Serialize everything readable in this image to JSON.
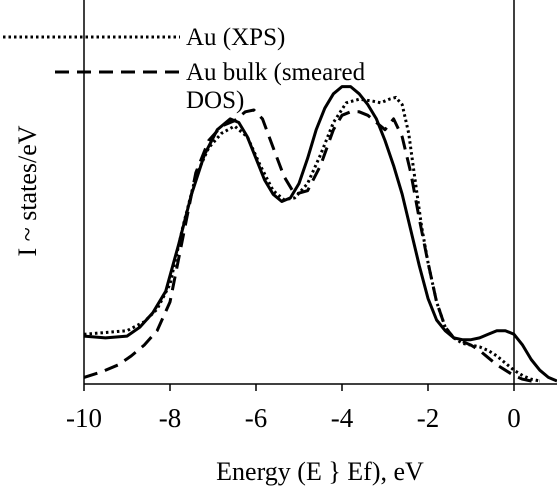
{
  "chart_data": {
    "type": "line",
    "xlabel": "Energy (E } Ef), eV",
    "ylabel": "I ~ states/eV",
    "xlim": [
      -10,
      1
    ],
    "ylim": [
      0,
      1
    ],
    "xticks": [
      -10,
      -8,
      -6,
      -4,
      -2,
      0
    ],
    "xtick_labels": [
      "-10",
      "-8",
      "-6",
      "-4",
      "-2",
      "0"
    ],
    "ytick_labels": [],
    "grid": false,
    "vline_x": 0,
    "legend_position": "top-left",
    "legend": [
      {
        "text": "Au (XPS)",
        "style": "dotted"
      },
      {
        "text_lines": [
          "Au bulk (smeared",
          "DOS)"
        ],
        "style": "dashed"
      }
    ],
    "series": [
      {
        "name": "Au (XPS)",
        "style": "dotted",
        "color": "#000000",
        "x": [
          -10,
          -9.5,
          -9.0,
          -8.6,
          -8.3,
          -8.0,
          -7.7,
          -7.4,
          -7.1,
          -6.8,
          -6.5,
          -6.2,
          -5.9,
          -5.6,
          -5.35,
          -5.1,
          -4.8,
          -4.5,
          -4.2,
          -3.9,
          -3.6,
          -3.3,
          -3.1,
          -2.9,
          -2.75,
          -2.6,
          -2.45,
          -2.3,
          -2.15,
          -2.0,
          -1.8,
          -1.6,
          -1.4,
          -1.2,
          -1.0,
          -0.8,
          -0.6,
          -0.4,
          -0.2,
          0.0,
          0.2,
          0.4,
          0.6
        ],
        "values": [
          0.13,
          0.135,
          0.14,
          0.165,
          0.2,
          0.27,
          0.43,
          0.57,
          0.65,
          0.69,
          0.71,
          0.68,
          0.6,
          0.53,
          0.505,
          0.51,
          0.55,
          0.63,
          0.72,
          0.775,
          0.785,
          0.78,
          0.775,
          0.785,
          0.79,
          0.77,
          0.69,
          0.56,
          0.43,
          0.33,
          0.22,
          0.15,
          0.12,
          0.105,
          0.1,
          0.095,
          0.085,
          0.07,
          0.05,
          0.03,
          0.015,
          0.005,
          0.0
        ]
      },
      {
        "name": "Au bulk (smeared DOS)",
        "style": "dashed",
        "color": "#000000",
        "x": [
          -10,
          -9.6,
          -9.2,
          -8.9,
          -8.6,
          -8.3,
          -8.0,
          -7.7,
          -7.4,
          -7.1,
          -6.8,
          -6.5,
          -6.25,
          -6.05,
          -5.85,
          -5.6,
          -5.35,
          -5.1,
          -4.8,
          -4.5,
          -4.2,
          -4.0,
          -3.8,
          -3.6,
          -3.4,
          -3.2,
          -3.0,
          -2.8,
          -2.6,
          -2.4,
          -2.2,
          -2.0,
          -1.8,
          -1.6,
          -1.4,
          -1.2,
          -1.0,
          -0.8,
          -0.6,
          -0.4,
          -0.2,
          0.0,
          0.2,
          0.4,
          0.6
        ],
        "values": [
          0.01,
          0.025,
          0.045,
          0.07,
          0.1,
          0.14,
          0.22,
          0.4,
          0.58,
          0.67,
          0.71,
          0.725,
          0.75,
          0.755,
          0.73,
          0.65,
          0.57,
          0.52,
          0.53,
          0.6,
          0.7,
          0.74,
          0.75,
          0.75,
          0.74,
          0.72,
          0.7,
          0.73,
          0.68,
          0.58,
          0.45,
          0.33,
          0.22,
          0.15,
          0.12,
          0.11,
          0.1,
          0.085,
          0.065,
          0.045,
          0.03,
          0.015,
          0.005,
          0.0,
          0.0
        ]
      },
      {
        "name": "",
        "style": "solid",
        "color": "#000000",
        "x": [
          -10,
          -9.5,
          -9.0,
          -8.7,
          -8.4,
          -8.1,
          -7.8,
          -7.5,
          -7.2,
          -6.9,
          -6.6,
          -6.4,
          -6.2,
          -6.0,
          -5.8,
          -5.6,
          -5.4,
          -5.2,
          -5.0,
          -4.8,
          -4.6,
          -4.4,
          -4.2,
          -4.0,
          -3.8,
          -3.6,
          -3.4,
          -3.2,
          -3.0,
          -2.8,
          -2.6,
          -2.4,
          -2.2,
          -2.0,
          -1.8,
          -1.6,
          -1.4,
          -1.2,
          -1.0,
          -0.8,
          -0.6,
          -0.4,
          -0.2,
          0.0,
          0.2,
          0.4,
          0.6,
          0.8,
          1.0
        ],
        "values": [
          0.125,
          0.12,
          0.125,
          0.15,
          0.19,
          0.25,
          0.38,
          0.52,
          0.63,
          0.7,
          0.73,
          0.72,
          0.68,
          0.62,
          0.56,
          0.52,
          0.5,
          0.51,
          0.55,
          0.62,
          0.7,
          0.76,
          0.8,
          0.82,
          0.82,
          0.8,
          0.77,
          0.73,
          0.67,
          0.6,
          0.52,
          0.42,
          0.32,
          0.23,
          0.17,
          0.14,
          0.12,
          0.115,
          0.115,
          0.12,
          0.13,
          0.14,
          0.14,
          0.13,
          0.1,
          0.06,
          0.03,
          0.01,
          0.0
        ]
      }
    ]
  }
}
